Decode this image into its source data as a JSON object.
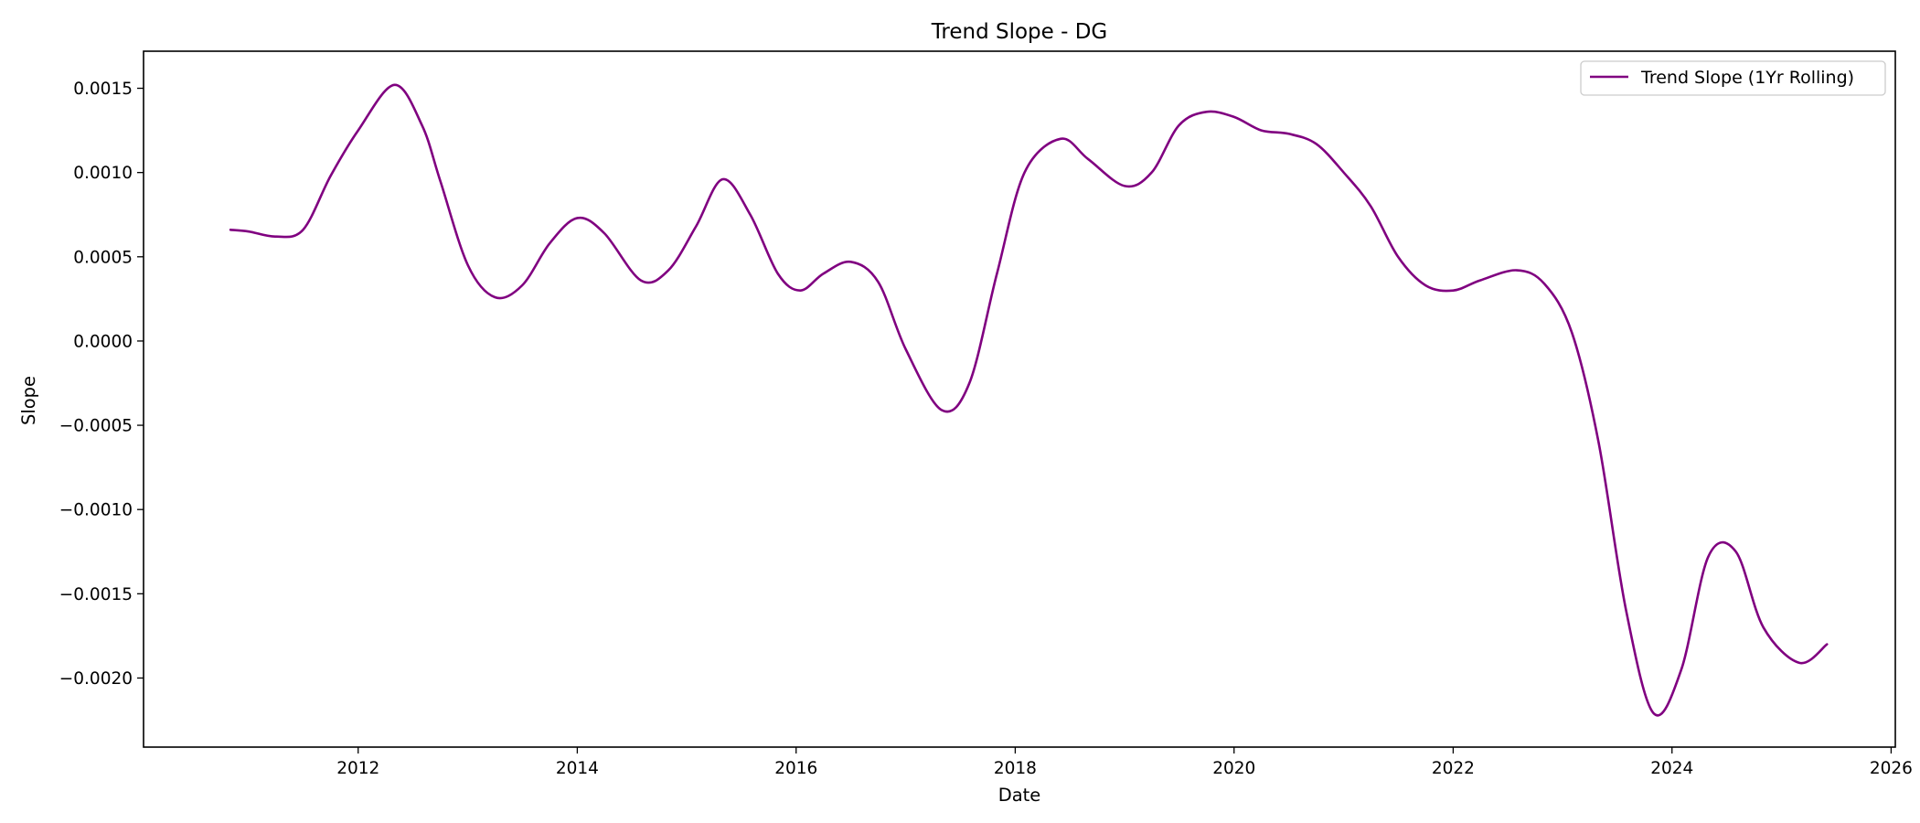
{
  "chart_data": {
    "type": "line",
    "title": "Trend Slope - DG",
    "xlabel": "Date",
    "ylabel": "Slope",
    "x_axis": {
      "type": "date",
      "range": [
        "2010-01-15",
        "2026-01-15"
      ],
      "ticks": [
        {
          "value": "2012-01-01",
          "label": "2012"
        },
        {
          "value": "2014-01-01",
          "label": "2014"
        },
        {
          "value": "2016-01-01",
          "label": "2016"
        },
        {
          "value": "2018-01-01",
          "label": "2018"
        },
        {
          "value": "2020-01-01",
          "label": "2020"
        },
        {
          "value": "2022-01-01",
          "label": "2022"
        },
        {
          "value": "2024-01-01",
          "label": "2024"
        },
        {
          "value": "2026-01-01",
          "label": "2026"
        }
      ]
    },
    "y_axis": {
      "range": [
        -0.00241,
        0.00172
      ],
      "ticks": [
        {
          "value": 0.0015,
          "label": "0.0015"
        },
        {
          "value": 0.001,
          "label": "0.0010"
        },
        {
          "value": 0.0005,
          "label": "0.0005"
        },
        {
          "value": 0.0,
          "label": "0.0000"
        },
        {
          "value": -0.0005,
          "label": "−0.0005"
        },
        {
          "value": -0.001,
          "label": "−0.0010"
        },
        {
          "value": -0.0015,
          "label": "−0.0015"
        },
        {
          "value": -0.002,
          "label": "−0.0020"
        }
      ]
    },
    "grid": false,
    "legend": {
      "placement": "upper right"
    },
    "series": [
      {
        "name": "Trend Slope (1Yr Rolling)",
        "color": "#800080",
        "points": [
          [
            "2010-11-01",
            0.00066
          ],
          [
            "2011-01-01",
            0.00065
          ],
          [
            "2011-04-01",
            0.00062
          ],
          [
            "2011-07-01",
            0.00066
          ],
          [
            "2011-10-01",
            0.00098
          ],
          [
            "2012-01-01",
            0.00125
          ],
          [
            "2012-05-01",
            0.00152
          ],
          [
            "2012-08-01",
            0.00128
          ],
          [
            "2012-10-01",
            0.00095
          ],
          [
            "2013-01-01",
            0.00045
          ],
          [
            "2013-04-01",
            0.00026
          ],
          [
            "2013-07-01",
            0.00033
          ],
          [
            "2013-10-01",
            0.00058
          ],
          [
            "2014-01-01",
            0.00073
          ],
          [
            "2014-04-01",
            0.00064
          ],
          [
            "2014-08-01",
            0.00036
          ],
          [
            "2014-11-01",
            0.00042
          ],
          [
            "2015-02-01",
            0.00068
          ],
          [
            "2015-05-01",
            0.00096
          ],
          [
            "2015-08-01",
            0.00075
          ],
          [
            "2015-11-01",
            0.0004
          ],
          [
            "2016-01-15",
            0.0003
          ],
          [
            "2016-04-01",
            0.0004
          ],
          [
            "2016-07-01",
            0.00047
          ],
          [
            "2016-10-01",
            0.00035
          ],
          [
            "2017-01-01",
            -5e-05
          ],
          [
            "2017-05-01",
            -0.00041
          ],
          [
            "2017-08-01",
            -0.00025
          ],
          [
            "2017-11-01",
            0.0004
          ],
          [
            "2018-02-01",
            0.001
          ],
          [
            "2018-06-01",
            0.0012
          ],
          [
            "2018-09-01",
            0.00108
          ],
          [
            "2019-01-01",
            0.00092
          ],
          [
            "2019-04-01",
            0.001
          ],
          [
            "2019-07-01",
            0.00128
          ],
          [
            "2019-10-01",
            0.00136
          ],
          [
            "2020-01-01",
            0.00133
          ],
          [
            "2020-04-01",
            0.00125
          ],
          [
            "2020-07-01",
            0.00123
          ],
          [
            "2020-10-01",
            0.00117
          ],
          [
            "2021-01-01",
            0.001
          ],
          [
            "2021-04-01",
            0.0008
          ],
          [
            "2021-07-01",
            0.0005
          ],
          [
            "2021-10-01",
            0.00033
          ],
          [
            "2022-01-01",
            0.0003
          ],
          [
            "2022-04-01",
            0.00036
          ],
          [
            "2022-08-01",
            0.00042
          ],
          [
            "2022-11-01",
            0.00034
          ],
          [
            "2023-02-01",
            5e-05
          ],
          [
            "2023-05-01",
            -0.0006
          ],
          [
            "2023-08-01",
            -0.0016
          ],
          [
            "2023-11-01",
            -0.00221
          ],
          [
            "2024-02-01",
            -0.00195
          ],
          [
            "2024-05-01",
            -0.00128
          ],
          [
            "2024-08-01",
            -0.00125
          ],
          [
            "2024-11-01",
            -0.0017
          ],
          [
            "2025-03-01",
            -0.00191
          ],
          [
            "2025-06-01",
            -0.0018
          ]
        ]
      }
    ]
  }
}
